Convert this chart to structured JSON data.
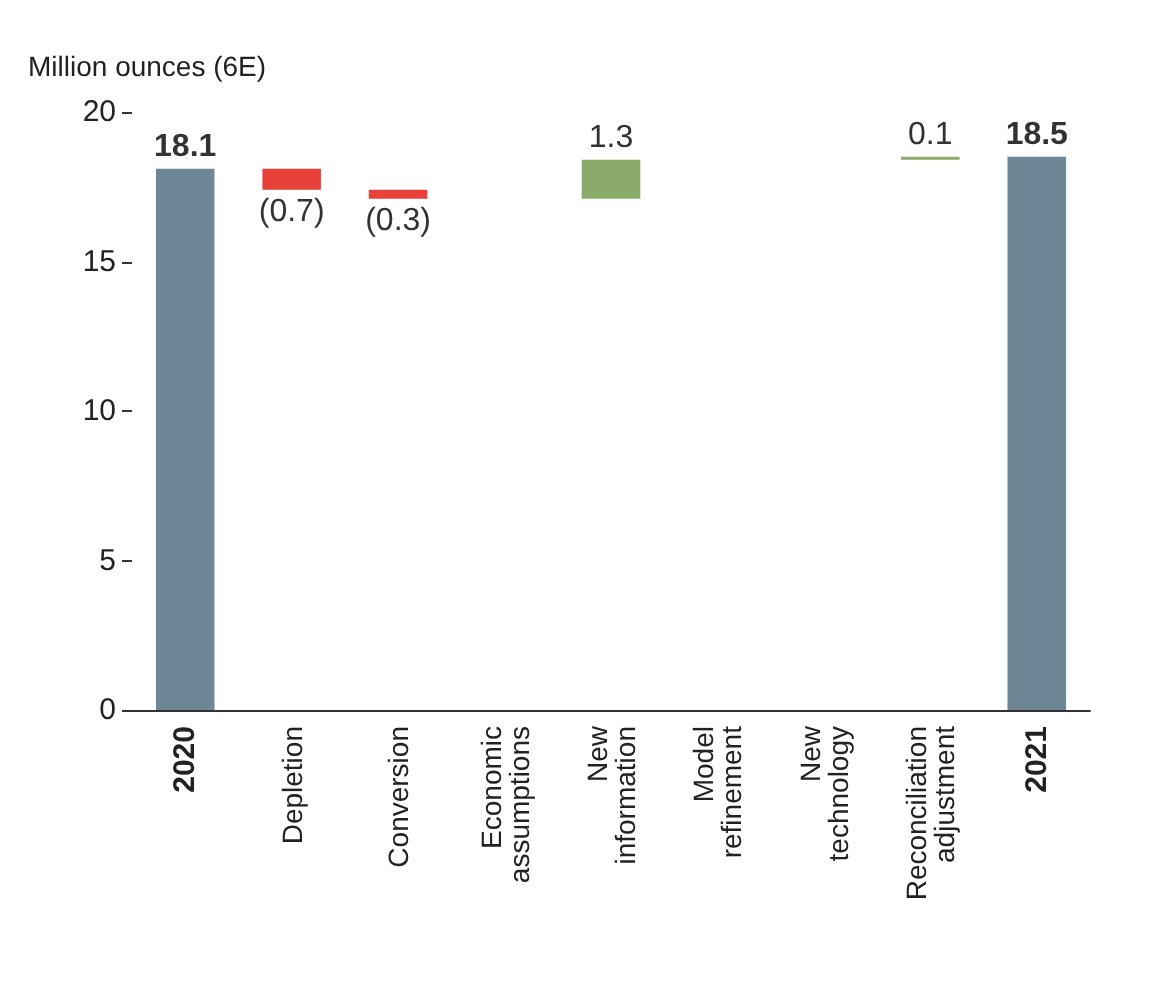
{
  "chart_data": {
    "type": "bar",
    "ylabel": "Million ounces (6E)",
    "categories": [
      "2020",
      "Depletion",
      "Conversion",
      "Economic assumptions",
      "New information",
      "Model refinement",
      "New technology",
      "Reconciliation adjustment",
      "2021"
    ],
    "values": [
      18.1,
      -0.7,
      -0.3,
      null,
      1.3,
      null,
      null,
      0.1,
      18.5
    ],
    "base": [
      0,
      18.1,
      17.4,
      null,
      17.1,
      null,
      null,
      18.4,
      0
    ],
    "colors": [
      "#6e8796",
      "#e8413a",
      "#e8413a",
      null,
      "#8aab6a",
      null,
      null,
      "#8aab6a",
      "#6e8796"
    ],
    "value_labels": [
      "18.1",
      "(0.7)",
      "(0.3)",
      null,
      "1.3",
      null,
      null,
      "0.1",
      "18.5"
    ],
    "ylim": [
      0,
      20
    ],
    "yticks": [
      0,
      5,
      10,
      15,
      20
    ],
    "grid": false
  }
}
